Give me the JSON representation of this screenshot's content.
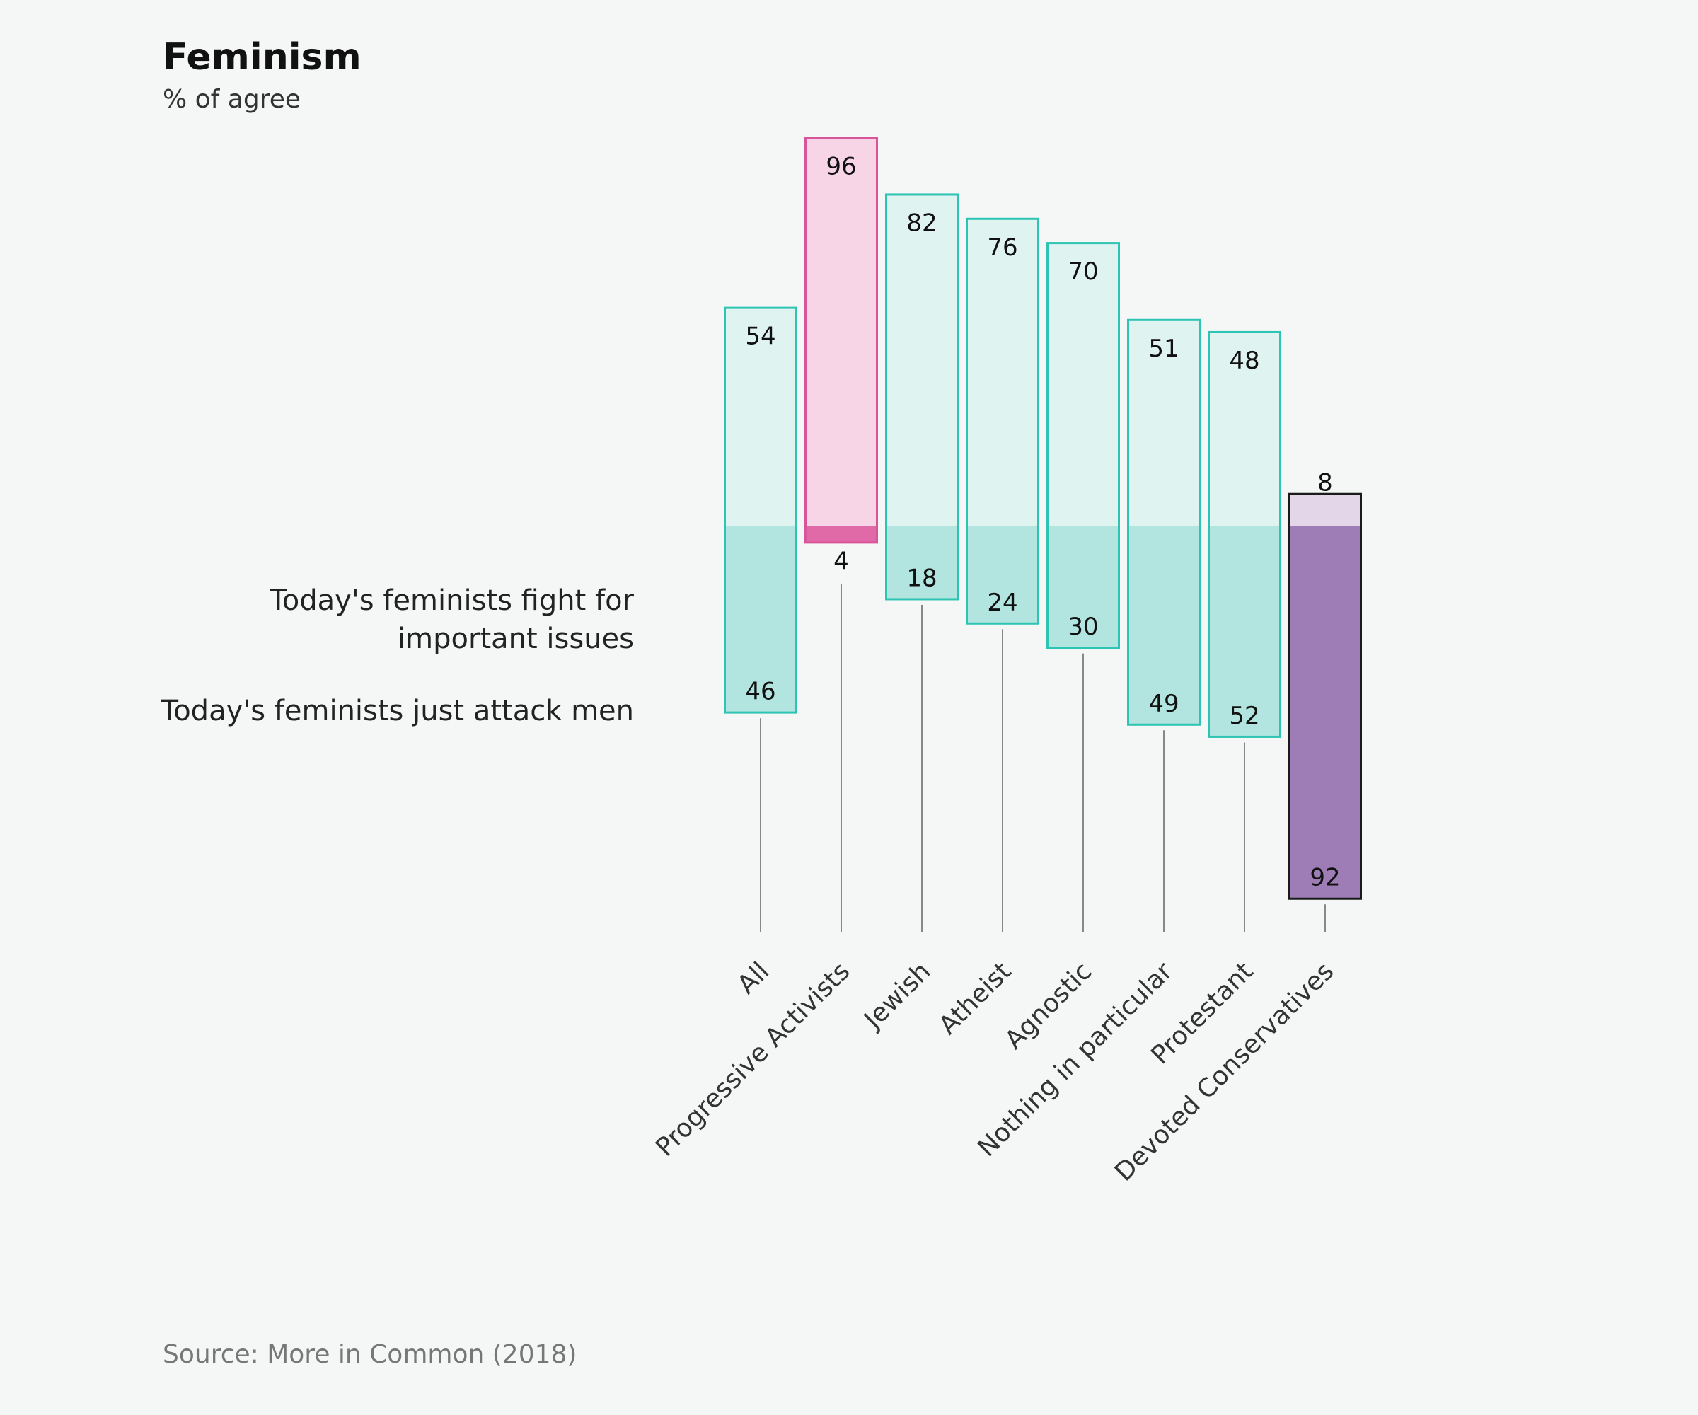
{
  "chart_data": {
    "type": "diverging-bar",
    "title": "Feminism",
    "subtitle": "% of agree",
    "source": "Source: More in Common (2018)",
    "categories": [
      "All",
      "Progressive Activists",
      "Jewish",
      "Atheist",
      "Agnostic",
      "Nothing in particular",
      "Protestant",
      "Devoted Conservatives"
    ],
    "series": [
      {
        "name": "Today's feminists fight for important issues",
        "values": [
          54,
          96,
          82,
          76,
          70,
          51,
          48,
          8
        ]
      },
      {
        "name": "Today's feminists just attack men",
        "values": [
          46,
          4,
          18,
          24,
          30,
          49,
          52,
          92
        ]
      }
    ],
    "bar_colors": [
      {
        "stroke": "#2ec4b3",
        "top": "#dff3f0",
        "bottom": "#b2e5df"
      },
      {
        "stroke": "#d9559a",
        "top": "#f8d5e6",
        "bottom": "#e06aa7"
      },
      {
        "stroke": "#2ec4b3",
        "top": "#dff3f0",
        "bottom": "#b2e5df"
      },
      {
        "stroke": "#2ec4b3",
        "top": "#dff3f0",
        "bottom": "#b2e5df"
      },
      {
        "stroke": "#2ec4b3",
        "top": "#dff3f0",
        "bottom": "#b2e5df"
      },
      {
        "stroke": "#2ec4b3",
        "top": "#dff3f0",
        "bottom": "#b2e5df"
      },
      {
        "stroke": "#2ec4b3",
        "top": "#dff3f0",
        "bottom": "#b2e5df"
      },
      {
        "stroke": "#1a1a1a",
        "top": "#e3d6e9",
        "bottom": "#9e7db6"
      }
    ]
  }
}
